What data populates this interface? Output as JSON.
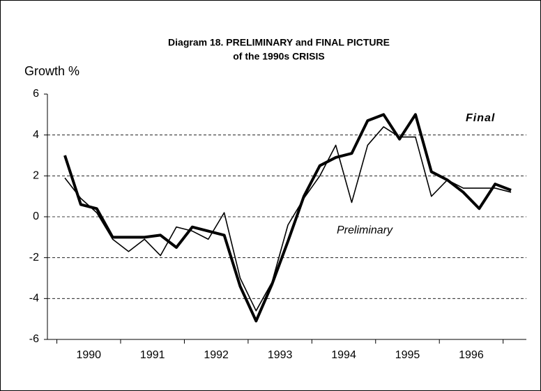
{
  "chart_data": {
    "type": "line",
    "title": "Diagram 18.  PRELIMINARY and FINAL PICTURE",
    "subtitle": "of the 1990s CRISIS",
    "y_label": "Growth %",
    "categories": [
      "1990",
      null,
      null,
      null,
      "1991",
      null,
      null,
      null,
      "1992",
      null,
      null,
      null,
      "1993",
      null,
      null,
      null,
      "1994",
      null,
      null,
      null,
      "1995",
      null,
      null,
      null,
      "1996",
      null,
      null,
      null,
      null
    ],
    "series": [
      {
        "name": "Final",
        "color": "#000000",
        "width": 4,
        "values": [
          3.0,
          0.6,
          0.4,
          -1.0,
          -1.0,
          -1.0,
          -0.9,
          -1.5,
          -0.5,
          -0.7,
          -0.9,
          -3.4,
          -5.1,
          -3.3,
          -1.2,
          1.0,
          2.5,
          2.9,
          3.1,
          4.7,
          5.0,
          3.8,
          5.0,
          2.2,
          1.8,
          1.2,
          0.4,
          1.6,
          1.3
        ]
      },
      {
        "name": "Preliminary",
        "color": "#000000",
        "width": 1.6,
        "values": [
          1.9,
          0.9,
          0.2,
          -1.1,
          -1.7,
          -1.1,
          -1.9,
          -0.5,
          -0.7,
          -1.1,
          0.2,
          -3.0,
          -4.6,
          -3.2,
          -0.4,
          0.9,
          2.0,
          3.5,
          0.7,
          3.5,
          4.4,
          3.9,
          3.9,
          1.0,
          1.8,
          1.4,
          1.4,
          1.4,
          1.2
        ]
      }
    ],
    "ylim": [
      -6,
      6
    ],
    "yticks": [
      -6,
      -4,
      -2,
      0,
      2,
      4,
      6
    ],
    "grid": true
  }
}
